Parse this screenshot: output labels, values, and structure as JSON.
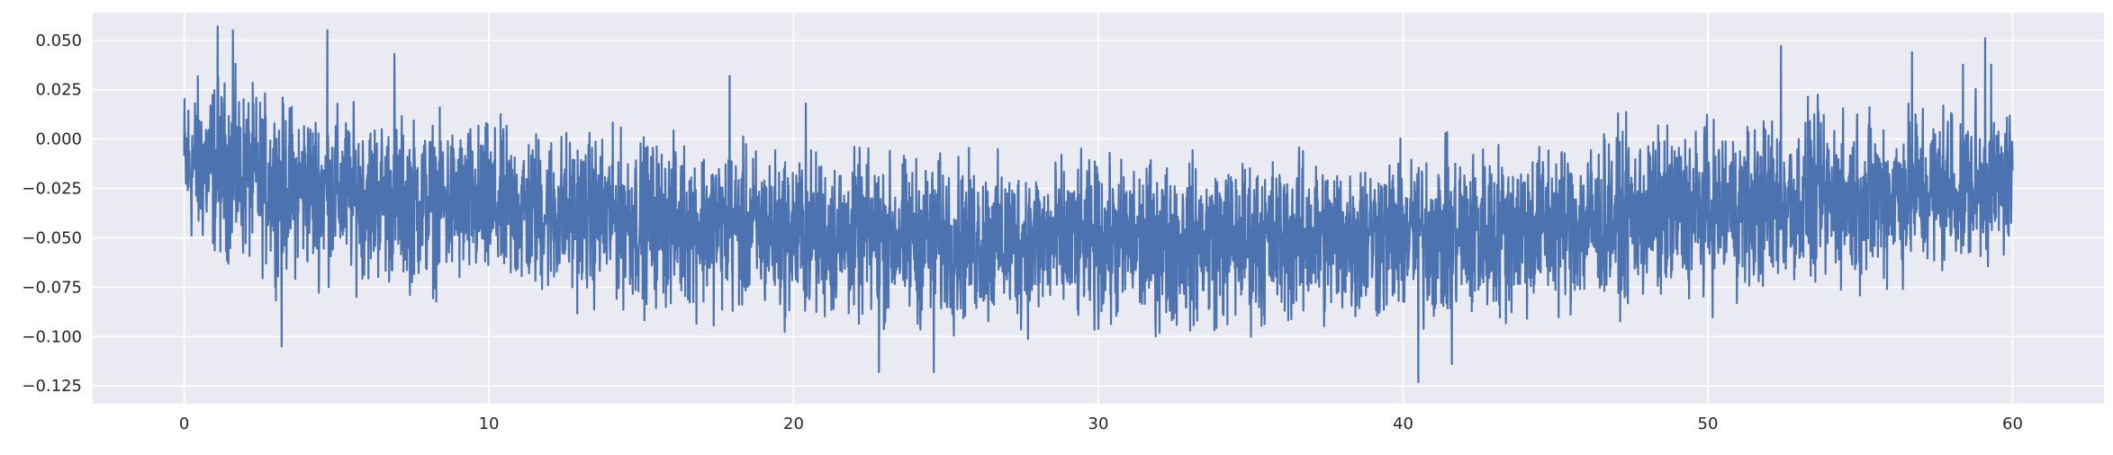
{
  "chart_data": {
    "type": "line",
    "title": "",
    "xlabel": "",
    "ylabel": "",
    "xlim": [
      -3,
      63
    ],
    "ylim": [
      -0.134,
      0.064
    ],
    "x_ticks": [
      0,
      10,
      20,
      30,
      40,
      50,
      60
    ],
    "x_tick_labels": [
      "0",
      "10",
      "20",
      "30",
      "40",
      "50",
      "60"
    ],
    "y_ticks": [
      0.05,
      0.025,
      0.0,
      -0.025,
      -0.05,
      -0.075,
      -0.1,
      -0.125
    ],
    "y_tick_labels": [
      "0.050",
      "0.025",
      "0.000",
      "−0.025",
      "−0.050",
      "−0.075",
      "−0.100",
      "−0.125"
    ],
    "grid": true,
    "legend": "none",
    "colors": {
      "background": "#eaeaf2",
      "grid": "#ffffff",
      "line": "#4c72b0"
    },
    "series": [
      {
        "x_start": 0,
        "x_end": 60,
        "description": "dense noisy signal",
        "envelope": {
          "t": [
            0,
            1,
            2,
            3,
            5,
            8,
            12,
            16,
            20,
            25,
            30,
            35,
            40,
            42,
            45,
            48,
            52,
            55,
            58,
            60
          ],
          "mean": [
            -0.012,
            -0.015,
            -0.018,
            -0.022,
            -0.026,
            -0.031,
            -0.036,
            -0.041,
            -0.046,
            -0.049,
            -0.051,
            -0.05,
            -0.047,
            -0.046,
            -0.043,
            -0.039,
            -0.034,
            -0.03,
            -0.027,
            -0.025
          ],
          "upper": [
            0.045,
            0.05,
            0.042,
            0.035,
            0.03,
            0.024,
            0.02,
            0.014,
            0.008,
            0.004,
            0.002,
            0.005,
            0.009,
            0.011,
            0.016,
            0.021,
            0.028,
            0.033,
            0.04,
            0.04
          ],
          "lower": [
            -0.07,
            -0.075,
            -0.08,
            -0.085,
            -0.087,
            -0.092,
            -0.097,
            -0.102,
            -0.108,
            -0.112,
            -0.113,
            -0.112,
            -0.11,
            -0.114,
            -0.104,
            -0.098,
            -0.092,
            -0.088,
            -0.08,
            -0.07
          ]
        },
        "spikes": [
          {
            "x": 1.1,
            "y": 0.057
          },
          {
            "x": 1.6,
            "y": 0.055
          },
          {
            "x": 3.2,
            "y": -0.105
          },
          {
            "x": 4.7,
            "y": 0.055
          },
          {
            "x": 6.9,
            "y": 0.043
          },
          {
            "x": 17.9,
            "y": 0.032
          },
          {
            "x": 20.4,
            "y": 0.018
          },
          {
            "x": 22.8,
            "y": -0.118
          },
          {
            "x": 24.6,
            "y": -0.118
          },
          {
            "x": 40.5,
            "y": -0.123
          },
          {
            "x": 41.6,
            "y": -0.114
          },
          {
            "x": 52.4,
            "y": 0.047
          },
          {
            "x": 55.2,
            "y": -0.066
          },
          {
            "x": 56.7,
            "y": 0.044
          },
          {
            "x": 59.1,
            "y": 0.051
          }
        ]
      }
    ]
  }
}
